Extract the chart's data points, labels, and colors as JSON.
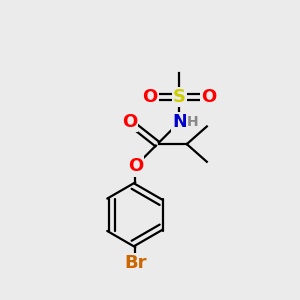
{
  "background_color": "#ebebeb",
  "atom_colors": {
    "O": "#ff0000",
    "N": "#0000cc",
    "S": "#cccc00",
    "Br": "#cc6600",
    "H": "#888888",
    "C": "#000000"
  },
  "font_size_atoms": 13,
  "font_size_small": 10,
  "line_color": "#000000",
  "line_width": 1.6,
  "figsize": [
    3.0,
    3.0
  ],
  "dpi": 100
}
